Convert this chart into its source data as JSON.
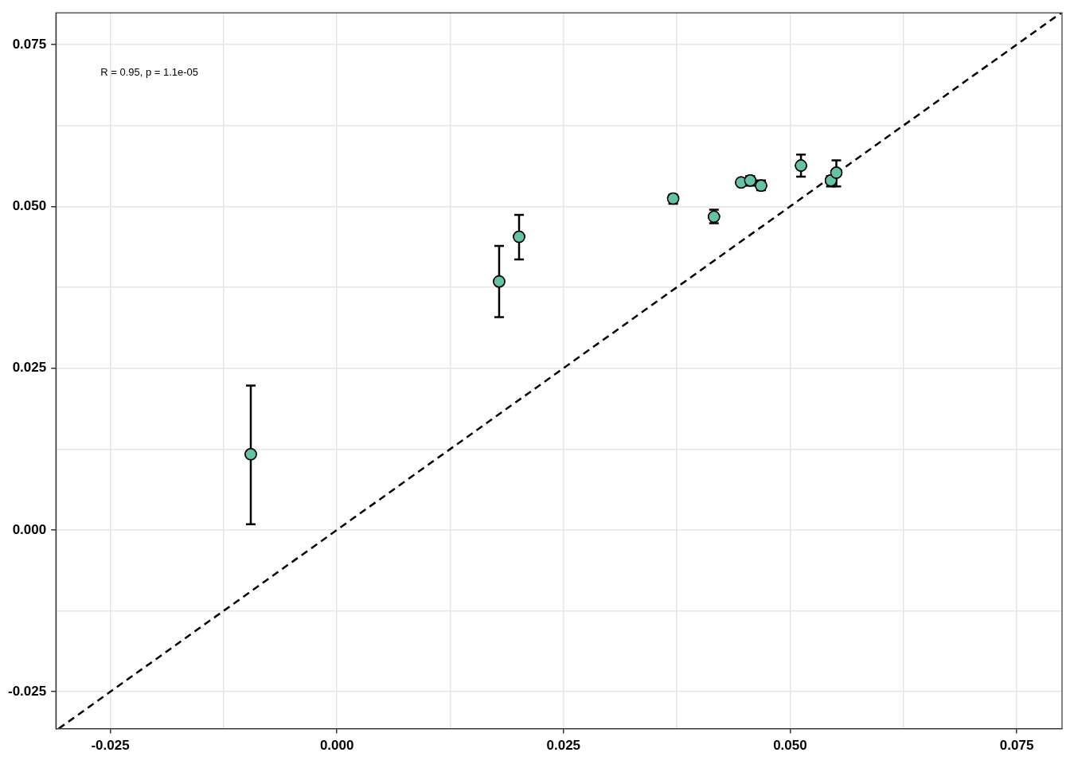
{
  "chart_data": {
    "type": "scatter",
    "x": [
      -0.0095,
      0.0179,
      0.0201,
      0.0371,
      0.0416,
      0.0446,
      0.0456,
      0.0468,
      0.0512,
      0.0545,
      0.0551
    ],
    "series": [
      {
        "color": "#66c2a5",
        "values": [
          0.0117,
          0.0384,
          0.0453,
          0.0512,
          0.0484,
          0.0537,
          0.054,
          0.0532,
          0.0563,
          0.054,
          0.0552
        ],
        "errors": [
          [
            0.0009,
            0.0223
          ],
          [
            0.0329,
            0.0439
          ],
          [
            0.0418,
            0.0487
          ],
          [
            0.0504,
            0.0518
          ],
          [
            0.0474,
            0.0495
          ],
          [
            0.0536,
            0.0538
          ],
          [
            0.0532,
            0.0547
          ],
          [
            0.0525,
            0.054
          ],
          [
            0.0546,
            0.058
          ],
          [
            0.0531,
            0.0547
          ],
          [
            0.0531,
            0.0571
          ]
        ]
      },
      {
        "type": "line",
        "color": "#000000",
        "line_style": "dashed",
        "marker": "none",
        "x": [
          -0.0307,
          0.0799
        ],
        "values": [
          -0.0307,
          0.0799
        ]
      }
    ],
    "xlim": [
      -0.031,
      0.08
    ],
    "ylim": [
      -0.0307,
      0.0799
    ],
    "xticks": [
      {
        "value": -0.025,
        "label": "-0.025"
      },
      {
        "value": -0.0125,
        "label": null
      },
      {
        "value": 0,
        "label": "0.000"
      },
      {
        "value": 0.0125,
        "label": null
      },
      {
        "value": 0.025,
        "label": "0.025"
      },
      {
        "value": 0.0375,
        "label": null
      },
      {
        "value": 0.05,
        "label": "0.050"
      },
      {
        "value": 0.0625,
        "label": null
      },
      {
        "value": 0.075,
        "label": "0.075"
      }
    ],
    "yticks": [
      {
        "value": -0.025,
        "label": "-0.025"
      },
      {
        "value": -0.0125,
        "label": null
      },
      {
        "value": 0,
        "label": "0.000"
      },
      {
        "value": 0.0125,
        "label": null
      },
      {
        "value": 0.025,
        "label": "0.025"
      },
      {
        "value": 0.0375,
        "label": null
      },
      {
        "value": 0.05,
        "label": "0.050"
      },
      {
        "value": 0.0625,
        "label": null
      },
      {
        "value": 0.075,
        "label": "0.075"
      }
    ],
    "grid": true,
    "legend": false,
    "marker": "circle",
    "annotations": [
      "R = 0.95, p = 1.1e-05"
    ]
  }
}
